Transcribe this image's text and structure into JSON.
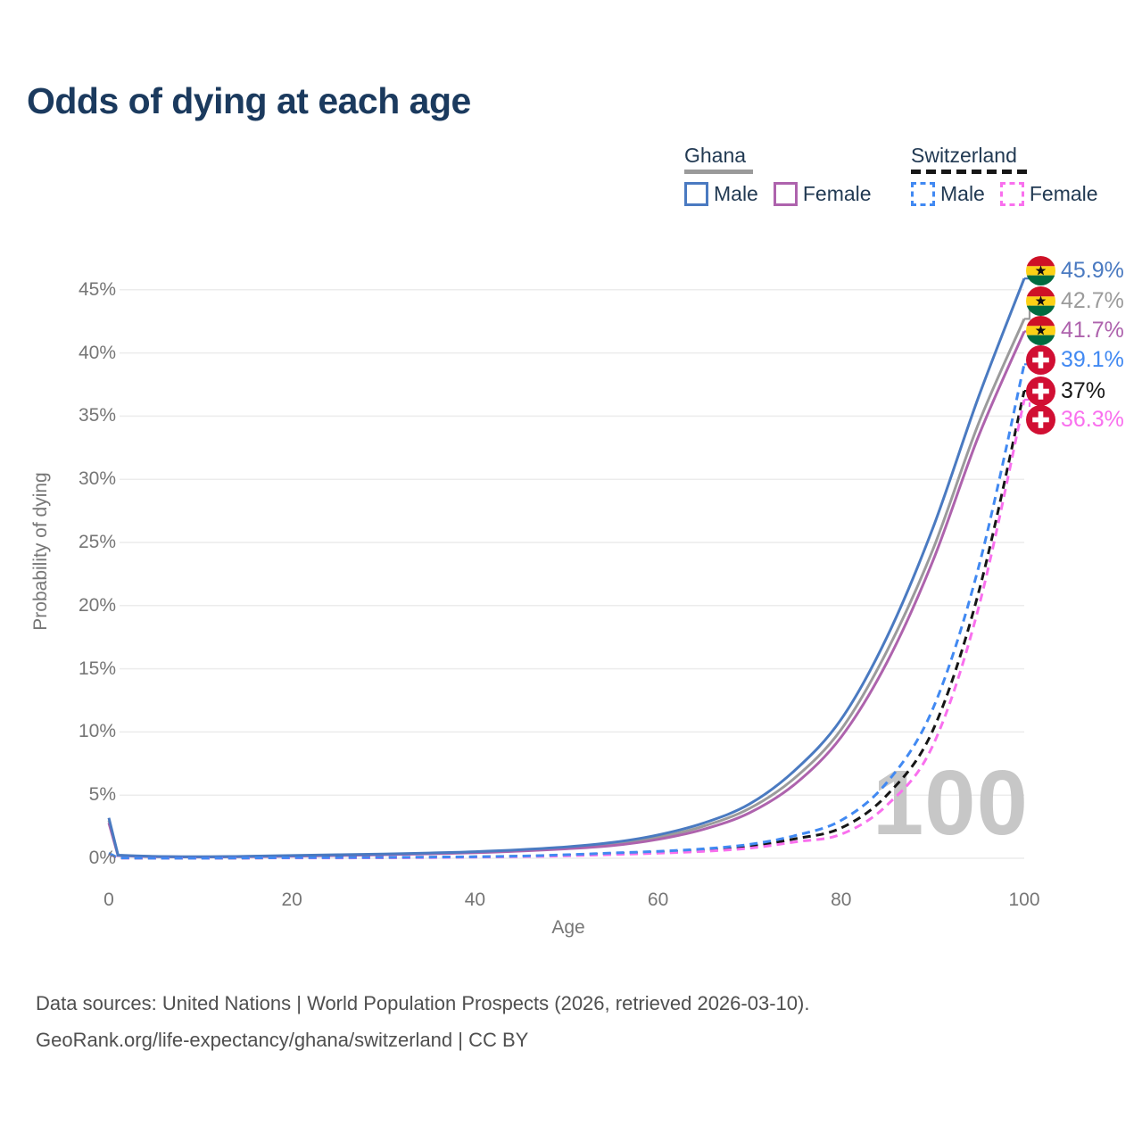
{
  "title": "Odds of dying at each age",
  "legend": {
    "groups": [
      {
        "label": "Ghana",
        "line_style": "solid",
        "underline_color": "#9a9a9a",
        "items": [
          {
            "label": "Male",
            "color": "#4a7ac1"
          },
          {
            "label": "Female",
            "color": "#ae63ad"
          }
        ]
      },
      {
        "label": "Switzerland",
        "line_style": "dashed",
        "underline_color": "#161616",
        "items": [
          {
            "label": "Male",
            "color": "#4189f2"
          },
          {
            "label": "Female",
            "color": "#f970ee"
          }
        ]
      }
    ]
  },
  "axes": {
    "x_label": "Age",
    "y_label": "Probability of dying"
  },
  "watermark": "100",
  "footer": {
    "line1": "Data sources: United Nations | World Population Prospects (2026, retrieved 2026-03-10).",
    "line2": "GeoRank.org/life-expectancy/ghana/switzerland | CC BY"
  },
  "colors": {
    "title": "#1b3a5e",
    "axis_text": "#767676",
    "gridline": "#ececec",
    "watermark": "#c7c7c7",
    "ghana_male": "#4a7ac1",
    "ghana_both": "#9b9b9b",
    "ghana_female": "#ae63ad",
    "swiss_male": "#4189f2",
    "swiss_both": "#161616",
    "swiss_female": "#f970ee"
  },
  "chart_data": {
    "type": "line",
    "title": "Odds of dying at each age",
    "xlabel": "Age",
    "ylabel": "Probability of dying",
    "unit": "%",
    "xlim": [
      0,
      100
    ],
    "ylim_pct": [
      0,
      47
    ],
    "x_ticks": [
      0,
      20,
      40,
      60,
      80,
      100
    ],
    "y_ticks_pct": [
      0,
      5,
      10,
      15,
      20,
      25,
      30,
      35,
      40,
      45
    ],
    "grid": "horizontal",
    "legend_position": "top-right",
    "age_watermark": "100",
    "x": [
      0,
      1,
      5,
      10,
      15,
      20,
      25,
      30,
      35,
      40,
      45,
      50,
      55,
      60,
      65,
      70,
      75,
      80,
      85,
      90,
      95,
      100
    ],
    "series": [
      {
        "id": "ghana-male",
        "name": "Ghana — Male",
        "flag": "ghana",
        "style": "solid",
        "color": "#4a7ac1",
        "end_label": "45.9%",
        "end_value_pct": 45.9,
        "values_pct": [
          3.2,
          0.25,
          0.15,
          0.12,
          0.16,
          0.22,
          0.28,
          0.34,
          0.42,
          0.52,
          0.68,
          0.9,
          1.25,
          1.85,
          2.8,
          4.3,
          7.0,
          11.0,
          17.5,
          26.1,
          36.5,
          45.9
        ]
      },
      {
        "id": "ghana-both",
        "name": "Ghana — Both sexes",
        "flag": "ghana",
        "style": "solid",
        "color": "#9b9b9b",
        "end_label": "42.7%",
        "end_value_pct": 42.7,
        "values_pct": [
          3.0,
          0.23,
          0.14,
          0.11,
          0.14,
          0.19,
          0.25,
          0.31,
          0.38,
          0.48,
          0.62,
          0.82,
          1.12,
          1.66,
          2.55,
          3.95,
          6.4,
          10.2,
          16.4,
          24.4,
          34.4,
          42.7
        ]
      },
      {
        "id": "ghana-female",
        "name": "Ghana — Female",
        "flag": "ghana",
        "style": "solid",
        "color": "#ae63ad",
        "end_label": "41.7%",
        "end_value_pct": 41.7,
        "values_pct": [
          2.8,
          0.21,
          0.13,
          0.1,
          0.12,
          0.17,
          0.22,
          0.28,
          0.35,
          0.44,
          0.57,
          0.75,
          1.0,
          1.5,
          2.3,
          3.6,
          5.9,
          9.6,
          15.5,
          23.5,
          33.4,
          41.7
        ]
      },
      {
        "id": "swiss-male",
        "name": "Switzerland — Male",
        "flag": "switzerland",
        "style": "dashed",
        "color": "#4189f2",
        "end_label": "39.1%",
        "end_value_pct": 39.1,
        "values_pct": [
          0.4,
          0.03,
          0.01,
          0.01,
          0.03,
          0.05,
          0.06,
          0.07,
          0.09,
          0.12,
          0.18,
          0.28,
          0.42,
          0.55,
          0.75,
          1.1,
          1.8,
          3.0,
          6.0,
          11.8,
          23.0,
          39.1
        ]
      },
      {
        "id": "swiss-both",
        "name": "Switzerland — Both sexes",
        "flag": "switzerland",
        "style": "dashed",
        "color": "#161616",
        "end_label": "37%",
        "end_value_pct": 37.0,
        "values_pct": [
          0.37,
          0.03,
          0.01,
          0.01,
          0.02,
          0.04,
          0.05,
          0.06,
          0.08,
          0.11,
          0.16,
          0.24,
          0.36,
          0.47,
          0.64,
          0.95,
          1.55,
          2.4,
          5.0,
          10.1,
          21.0,
          37.0
        ]
      },
      {
        "id": "swiss-female",
        "name": "Switzerland — Female",
        "flag": "switzerland",
        "style": "dashed",
        "color": "#f970ee",
        "end_label": "36.3%",
        "end_value_pct": 36.3,
        "values_pct": [
          0.35,
          0.02,
          0.01,
          0.01,
          0.02,
          0.03,
          0.03,
          0.04,
          0.06,
          0.09,
          0.13,
          0.2,
          0.3,
          0.4,
          0.55,
          0.8,
          1.3,
          1.9,
          4.2,
          8.9,
          19.8,
          36.3
        ]
      }
    ]
  }
}
